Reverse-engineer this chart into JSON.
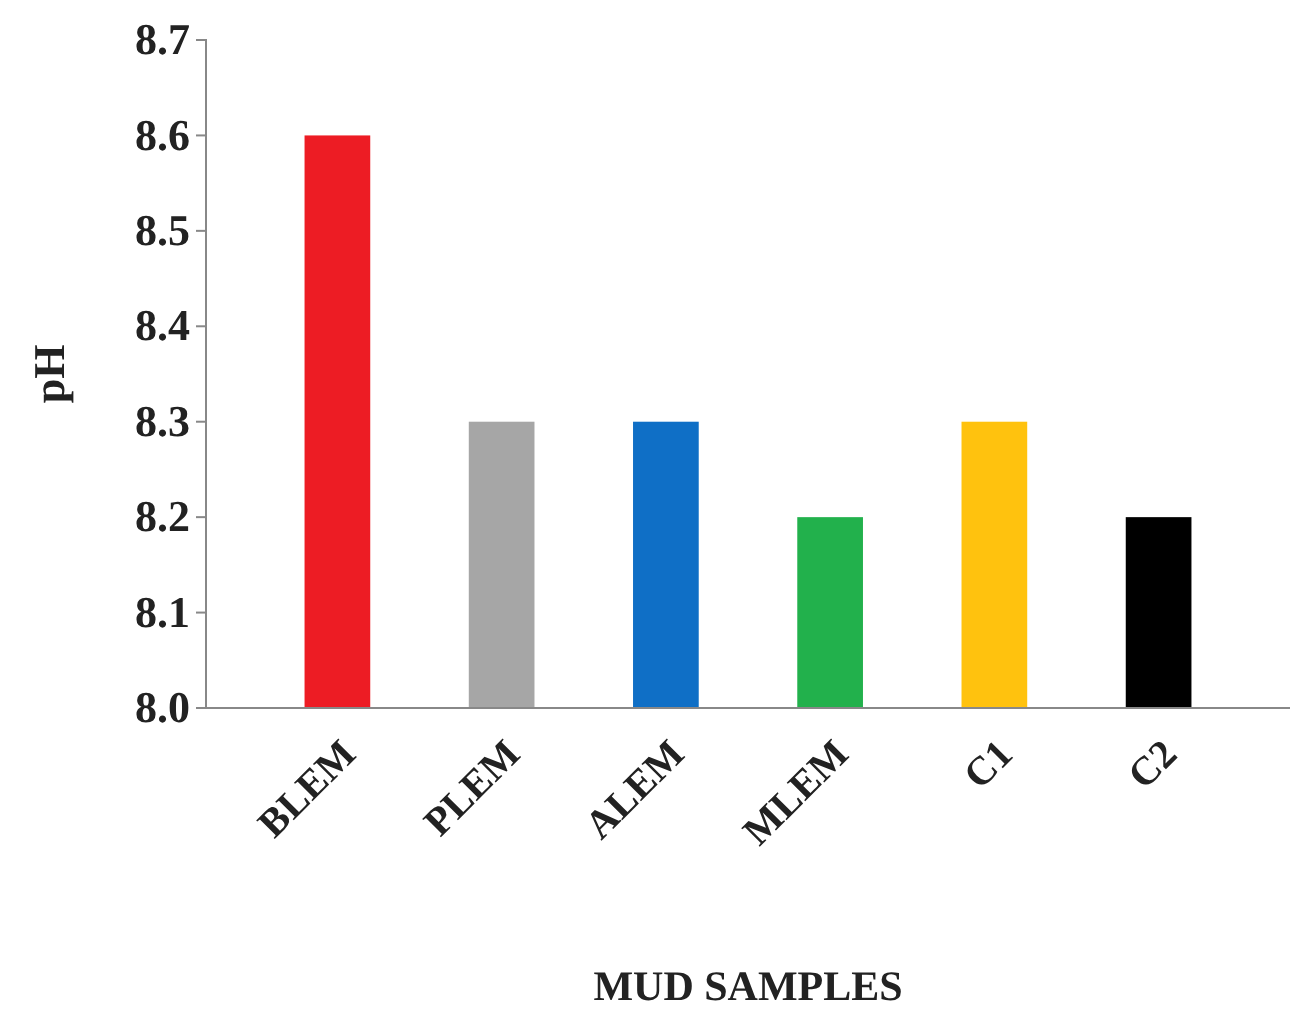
{
  "chart_data": {
    "type": "bar",
    "xlabel": "MUD SAMPLES",
    "ylabel": "pH",
    "categories": [
      "BLEM",
      "PLEM",
      "ALEM",
      "MLEM",
      "C1",
      "C2"
    ],
    "values": [
      8.6,
      8.3,
      8.3,
      8.2,
      8.3,
      8.2
    ],
    "colors": [
      "#ed1c24",
      "#a6a6a6",
      "#0f6fc6",
      "#22b14c",
      "#ffc20e",
      "#000000"
    ],
    "ylim": [
      8.0,
      8.7
    ],
    "yticks": [
      {
        "value": 8.0,
        "label": "8.0"
      },
      {
        "value": 8.1,
        "label": "8.1"
      },
      {
        "value": 8.2,
        "label": "8.2"
      },
      {
        "value": 8.3,
        "label": "8.3"
      },
      {
        "value": 8.4,
        "label": "8.4"
      },
      {
        "value": 8.5,
        "label": "8.5"
      },
      {
        "value": 8.6,
        "label": "8.6"
      },
      {
        "value": 8.7,
        "label": "8.7"
      }
    ],
    "grid": false
  }
}
